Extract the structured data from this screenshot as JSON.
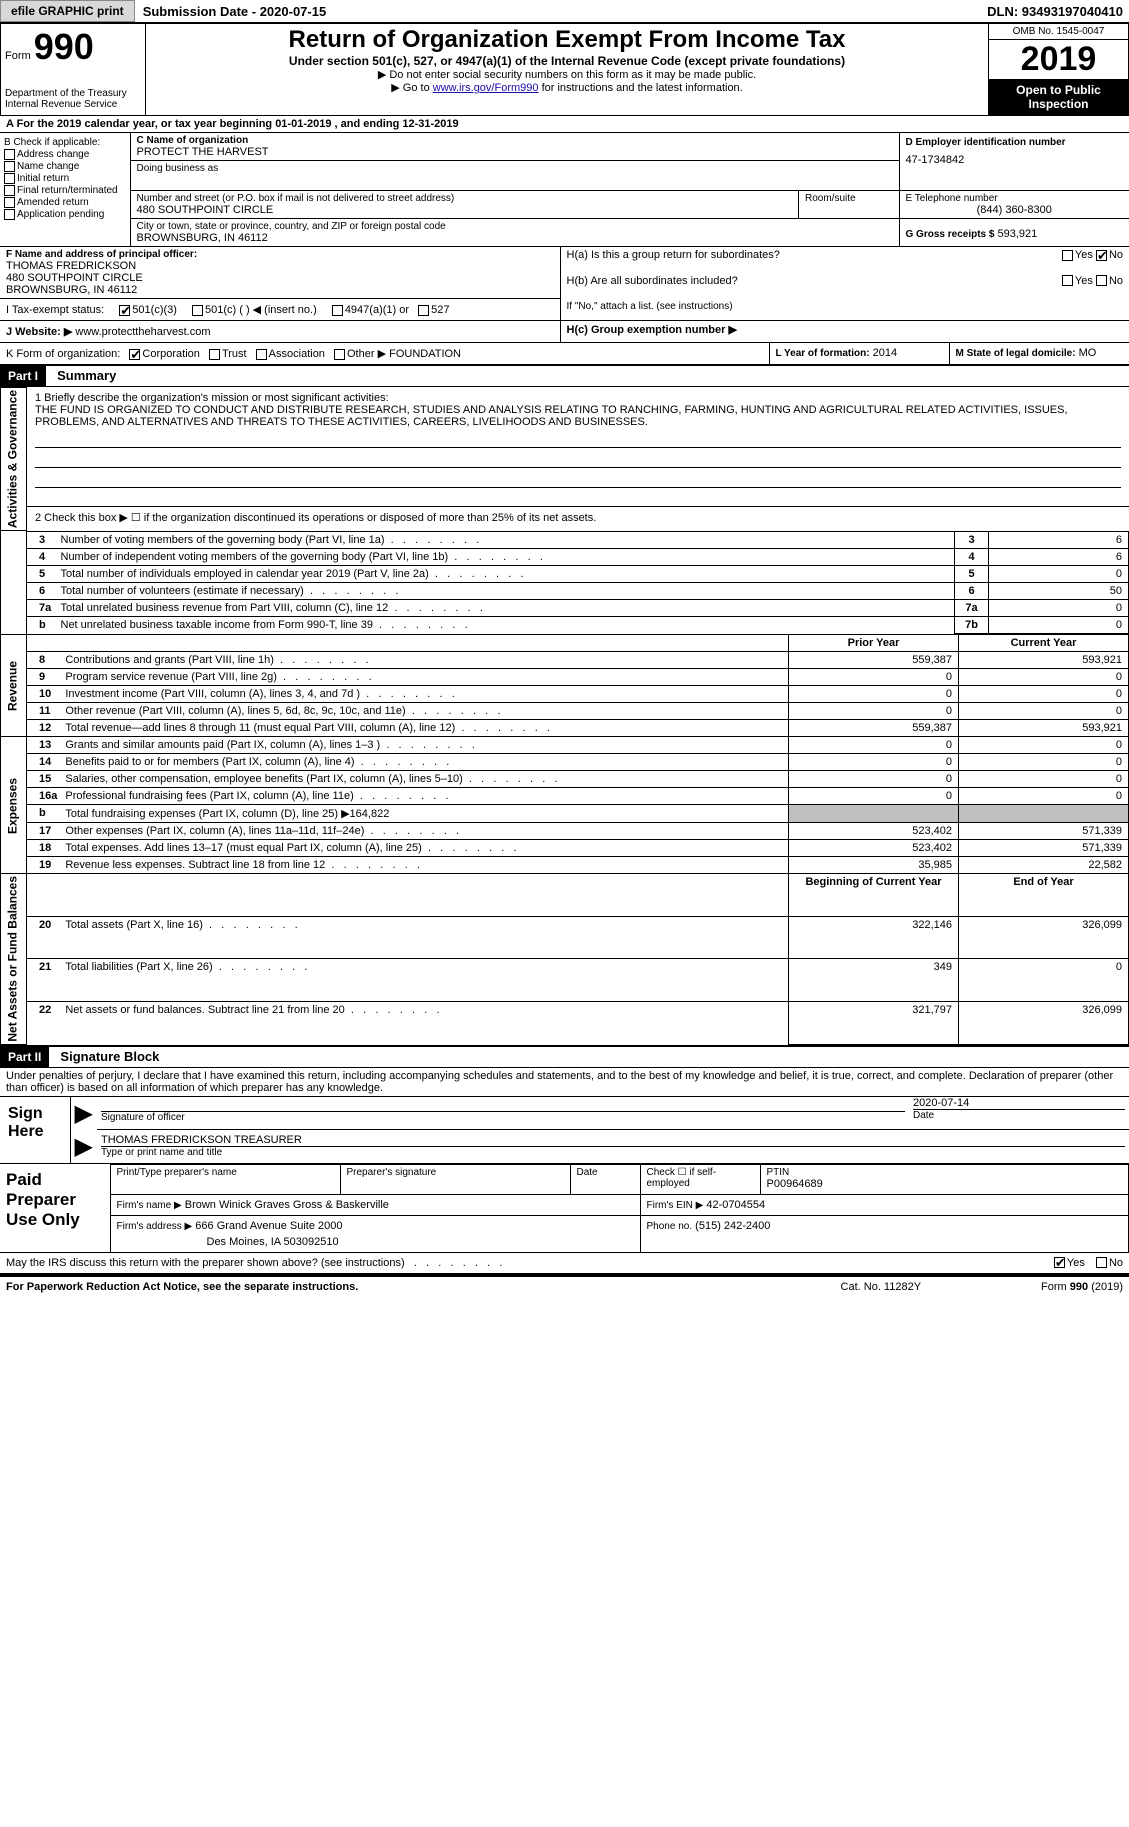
{
  "meta": {
    "efile_btn": "efile GRAPHIC print",
    "submission_date_label": "Submission Date - 2020-07-15",
    "dln": "DLN: 93493197040410"
  },
  "header": {
    "form_label": "Form",
    "form_number": "990",
    "dept": "Department of the Treasury\nInternal Revenue Service",
    "title": "Return of Organization Exempt From Income Tax",
    "subtitle": "Under section 501(c), 527, or 4947(a)(1) of the Internal Revenue Code (except private foundations)",
    "note1": "▶ Do not enter social security numbers on this form as it may be made public.",
    "note2_pre": "▶ Go to ",
    "note2_link": "www.irs.gov/Form990",
    "note2_post": " for instructions and the latest information.",
    "omb": "OMB No. 1545-0047",
    "year": "2019",
    "inspection": "Open to Public Inspection"
  },
  "period": {
    "line": "A For the 2019 calendar year, or tax year beginning 01-01-2019   , and ending 12-31-2019"
  },
  "boxB": {
    "label": "B Check if applicable:",
    "items": [
      "Address change",
      "Name change",
      "Initial return",
      "Final return/terminated",
      "Amended return",
      "Application pending"
    ]
  },
  "boxC": {
    "name_label": "C Name of organization",
    "name": "PROTECT THE HARVEST",
    "dba_label": "Doing business as",
    "dba": "",
    "addr_label": "Number and street (or P.O. box if mail is not delivered to street address)",
    "room_label": "Room/suite",
    "addr": "480 SOUTHPOINT CIRCLE",
    "city_label": "City or town, state or province, country, and ZIP or foreign postal code",
    "city": "BROWNSBURG, IN  46112"
  },
  "boxD": {
    "label": "D Employer identification number",
    "value": "47-1734842"
  },
  "boxE": {
    "label": "E Telephone number",
    "value": "(844) 360-8300"
  },
  "boxG": {
    "label": "G Gross receipts $",
    "value": "593,921"
  },
  "boxF": {
    "label": "F Name and address of principal officer:",
    "name": "THOMAS FREDRICKSON",
    "addr1": "480 SOUTHPOINT CIRCLE",
    "addr2": "BROWNSBURG, IN  46112"
  },
  "boxH": {
    "a": "H(a)  Is this a group return for subordinates?",
    "a_yes": "Yes",
    "a_no": "No",
    "b": "H(b)  Are all subordinates included?",
    "b_yes": "Yes",
    "b_no": "No",
    "b_note": "If \"No,\" attach a list. (see instructions)",
    "c": "H(c)  Group exemption number ▶"
  },
  "boxI": {
    "label": "I   Tax-exempt status:",
    "opts": [
      "501(c)(3)",
      "501(c) (  ) ◀ (insert no.)",
      "4947(a)(1) or",
      "527"
    ]
  },
  "boxJ": {
    "label": "J   Website: ▶",
    "value": "www.protecttheharvest.com"
  },
  "boxK": {
    "label": "K Form of organization:",
    "opts": [
      "Corporation",
      "Trust",
      "Association",
      "Other ▶"
    ],
    "other_val": "FOUNDATION"
  },
  "boxL": {
    "label": "L Year of formation:",
    "value": "2014"
  },
  "boxM": {
    "label": "M State of legal domicile:",
    "value": "MO"
  },
  "part1": {
    "hdr": "Part I",
    "title": "Summary",
    "l1_label": "1   Briefly describe the organization's mission or most significant activities:",
    "l1_text": "THE FUND IS ORGANIZED TO CONDUCT AND DISTRIBUTE RESEARCH, STUDIES AND ANALYSIS RELATING TO RANCHING, FARMING, HUNTING AND AGRICULTURAL RELATED ACTIVITIES, ISSUES, PROBLEMS, AND ALTERNATIVES AND THREATS TO THESE ACTIVITIES, CAREERS, LIVELIHOODS AND BUSINESSES.",
    "l2": "2   Check this box ▶ ☐  if the organization discontinued its operations or disposed of more than 25% of its net assets.",
    "lines_gov": [
      {
        "n": "3",
        "t": "Number of voting members of the governing body (Part VI, line 1a)",
        "box": "3",
        "v": "6"
      },
      {
        "n": "4",
        "t": "Number of independent voting members of the governing body (Part VI, line 1b)",
        "box": "4",
        "v": "6"
      },
      {
        "n": "5",
        "t": "Total number of individuals employed in calendar year 2019 (Part V, line 2a)",
        "box": "5",
        "v": "0"
      },
      {
        "n": "6",
        "t": "Total number of volunteers (estimate if necessary)",
        "box": "6",
        "v": "50"
      },
      {
        "n": "7a",
        "t": "Total unrelated business revenue from Part VIII, column (C), line 12",
        "box": "7a",
        "v": "0"
      },
      {
        "n": "b",
        "t": "Net unrelated business taxable income from Form 990-T, line 39",
        "box": "7b",
        "v": "0"
      }
    ],
    "col_prior": "Prior Year",
    "col_current": "Current Year",
    "revenue": [
      {
        "n": "8",
        "t": "Contributions and grants (Part VIII, line 1h)",
        "p": "559,387",
        "c": "593,921"
      },
      {
        "n": "9",
        "t": "Program service revenue (Part VIII, line 2g)",
        "p": "0",
        "c": "0"
      },
      {
        "n": "10",
        "t": "Investment income (Part VIII, column (A), lines 3, 4, and 7d )",
        "p": "0",
        "c": "0"
      },
      {
        "n": "11",
        "t": "Other revenue (Part VIII, column (A), lines 5, 6d, 8c, 9c, 10c, and 11e)",
        "p": "0",
        "c": "0"
      },
      {
        "n": "12",
        "t": "Total revenue—add lines 8 through 11 (must equal Part VIII, column (A), line 12)",
        "p": "559,387",
        "c": "593,921"
      }
    ],
    "expenses": [
      {
        "n": "13",
        "t": "Grants and similar amounts paid (Part IX, column (A), lines 1–3 )",
        "p": "0",
        "c": "0"
      },
      {
        "n": "14",
        "t": "Benefits paid to or for members (Part IX, column (A), line 4)",
        "p": "0",
        "c": "0"
      },
      {
        "n": "15",
        "t": "Salaries, other compensation, employee benefits (Part IX, column (A), lines 5–10)",
        "p": "0",
        "c": "0"
      },
      {
        "n": "16a",
        "t": "Professional fundraising fees (Part IX, column (A), line 11e)",
        "p": "0",
        "c": "0"
      },
      {
        "n": "b",
        "t": "Total fundraising expenses (Part IX, column (D), line 25) ▶164,822",
        "p": "",
        "c": "",
        "gray": true
      },
      {
        "n": "17",
        "t": "Other expenses (Part IX, column (A), lines 11a–11d, 11f–24e)",
        "p": "523,402",
        "c": "571,339"
      },
      {
        "n": "18",
        "t": "Total expenses. Add lines 13–17 (must equal Part IX, column (A), line 25)",
        "p": "523,402",
        "c": "571,339"
      },
      {
        "n": "19",
        "t": "Revenue less expenses. Subtract line 18 from line 12",
        "p": "35,985",
        "c": "22,582"
      }
    ],
    "col_boy": "Beginning of Current Year",
    "col_eoy": "End of Year",
    "netassets": [
      {
        "n": "20",
        "t": "Total assets (Part X, line 16)",
        "p": "322,146",
        "c": "326,099"
      },
      {
        "n": "21",
        "t": "Total liabilities (Part X, line 26)",
        "p": "349",
        "c": "0"
      },
      {
        "n": "22",
        "t": "Net assets or fund balances. Subtract line 21 from line 20",
        "p": "321,797",
        "c": "326,099"
      }
    ],
    "vtabs": {
      "gov": "Activities & Governance",
      "rev": "Revenue",
      "exp": "Expenses",
      "net": "Net Assets or Fund Balances"
    }
  },
  "part2": {
    "hdr": "Part II",
    "title": "Signature Block",
    "decl": "Under penalties of perjury, I declare that I have examined this return, including accompanying schedules and statements, and to the best of my knowledge and belief, it is true, correct, and complete. Declaration of preparer (other than officer) is based on all information of which preparer has any knowledge.",
    "sign_here": "Sign Here",
    "sig_label": "Signature of officer",
    "sig_date": "2020-07-14",
    "date_label": "Date",
    "name_title": "THOMAS FREDRICKSON  TREASURER",
    "name_title_label": "Type or print name and title",
    "paid": "Paid Preparer Use Only",
    "prep_name_label": "Print/Type preparer's name",
    "prep_sig_label": "Preparer's signature",
    "prep_date_label": "Date",
    "self_emp": "Check ☐ if self-employed",
    "ptin_label": "PTIN",
    "ptin": "P00964689",
    "firm_name_label": "Firm's name    ▶",
    "firm_name": "Brown Winick Graves Gross & Baskerville",
    "firm_ein_label": "Firm's EIN ▶",
    "firm_ein": "42-0704554",
    "firm_addr_label": "Firm's address ▶",
    "firm_addr1": "666 Grand Avenue Suite 2000",
    "firm_addr2": "Des Moines, IA  503092510",
    "firm_phone_label": "Phone no.",
    "firm_phone": "(515) 242-2400",
    "discuss": "May the IRS discuss this return with the preparer shown above? (see instructions)",
    "yes": "Yes",
    "no": "No"
  },
  "footer": {
    "left": "For Paperwork Reduction Act Notice, see the separate instructions.",
    "mid": "Cat. No. 11282Y",
    "right": "Form 990 (2019)"
  }
}
